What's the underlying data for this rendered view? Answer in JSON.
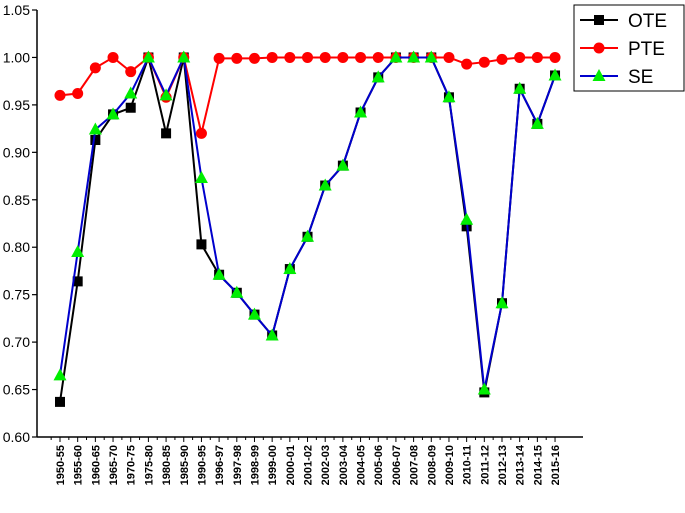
{
  "chart_data": {
    "type": "line",
    "title": "",
    "xlabel": "",
    "ylabel": "",
    "ylim": [
      0.6,
      1.05
    ],
    "yticks": [
      "0.60",
      "0.65",
      "0.70",
      "0.75",
      "0.80",
      "0.85",
      "0.90",
      "0.95",
      "1.00",
      "1.05"
    ],
    "grid": false,
    "legend_position": "top-right",
    "categories": [
      "1950-55",
      "1955-60",
      "1960-65",
      "1965-70",
      "1970-75",
      "1975-80",
      "1980-85",
      "1985-90",
      "1990-95",
      "1996-97",
      "1997-98",
      "1998-99",
      "1999-00",
      "2000-01",
      "2001-02",
      "2002-03",
      "2003-04",
      "2004-05",
      "2005-06",
      "2006-07",
      "2007-08",
      "2008-09",
      "2009-10",
      "2010-11",
      "2011-12",
      "2012-13",
      "2013-14",
      "2014-15",
      "2015-16"
    ],
    "series": [
      {
        "name": "OTE",
        "color": "#000000",
        "marker": "square",
        "values": [
          0.637,
          0.764,
          0.913,
          0.94,
          0.947,
          1.0,
          0.92,
          1.0,
          0.803,
          0.771,
          0.752,
          0.729,
          0.707,
          0.777,
          0.811,
          0.865,
          0.886,
          0.942,
          0.979,
          1.0,
          1.0,
          1.0,
          0.958,
          0.822,
          0.647,
          0.741,
          0.967,
          0.93,
          0.981
        ]
      },
      {
        "name": "PTE",
        "color": "#ff0000",
        "marker": "circle",
        "values": [
          0.96,
          0.962,
          0.989,
          1.0,
          0.985,
          1.0,
          0.958,
          1.0,
          0.92,
          0.999,
          0.999,
          0.999,
          1.0,
          1.0,
          1.0,
          1.0,
          1.0,
          1.0,
          1.0,
          1.0,
          1.0,
          1.0,
          1.0,
          0.993,
          0.995,
          0.998,
          1.0,
          1.0,
          1.0
        ]
      },
      {
        "name": "SE",
        "color": "#0000cc",
        "marker": "triangle",
        "marker_color": "#00ee00",
        "values": [
          0.665,
          0.795,
          0.924,
          0.94,
          0.962,
          1.0,
          0.96,
          1.0,
          0.873,
          0.771,
          0.752,
          0.729,
          0.707,
          0.777,
          0.811,
          0.865,
          0.886,
          0.942,
          0.979,
          1.0,
          1.0,
          1.0,
          0.958,
          0.829,
          0.65,
          0.741,
          0.967,
          0.93,
          0.981
        ]
      }
    ]
  }
}
